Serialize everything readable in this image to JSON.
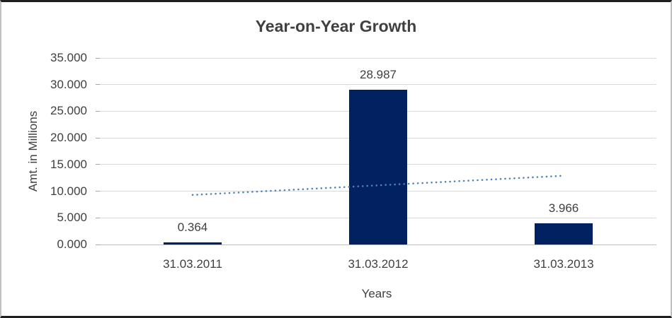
{
  "chart_data": {
    "type": "bar",
    "title": "Year-on-Year Growth",
    "xlabel": "Years",
    "ylabel": "Amt. in Millions",
    "categories": [
      "31.03.2011",
      "31.03.2012",
      "31.03.2013"
    ],
    "values": [
      0.364,
      28.987,
      3.966
    ],
    "data_labels": [
      "0.364",
      "28.987",
      "3.966"
    ],
    "ylim": [
      0,
      35
    ],
    "ytick_step": 5,
    "ytick_labels": [
      "0.000",
      "5.000",
      "10.000",
      "15.000",
      "20.000",
      "25.000",
      "30.000",
      "35.000"
    ],
    "grid": true,
    "legend": "none",
    "bar_color": "#022161",
    "gridline_color": "#d9d9d9",
    "axis_line_color": "#bfbfbf",
    "tick_color": "#a6a6a6",
    "title_color": "#404040",
    "label_color": "#3f3f3f",
    "trendline": {
      "type": "linear",
      "style": "dotted",
      "color": "#4f81bd",
      "start_value": 9.3,
      "end_value": 12.9
    }
  }
}
